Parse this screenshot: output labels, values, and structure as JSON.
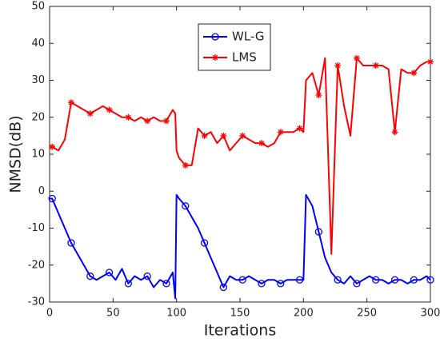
{
  "chart_data": {
    "type": "line",
    "xlabel": "Iterations",
    "ylabel": "NMSD(dB)",
    "xlim": [
      0,
      300
    ],
    "xticks": [
      0,
      50,
      100,
      150,
      200,
      250,
      300
    ],
    "ylim": [
      -30,
      50
    ],
    "yticks": [
      -30,
      -20,
      -10,
      0,
      10,
      20,
      30,
      40,
      50
    ],
    "grid": false,
    "legend": "top",
    "x": [
      0,
      2,
      7,
      12,
      17,
      22,
      27,
      32,
      37,
      42,
      47,
      52,
      57,
      62,
      67,
      72,
      77,
      82,
      87,
      92,
      97,
      99,
      100,
      102,
      107,
      112,
      117,
      122,
      127,
      132,
      137,
      142,
      147,
      152,
      157,
      162,
      167,
      172,
      177,
      182,
      187,
      192,
      197,
      200,
      202,
      207,
      212,
      217,
      222,
      227,
      232,
      237,
      242,
      247,
      252,
      257,
      262,
      267,
      272,
      277,
      282,
      287,
      292,
      297,
      300
    ],
    "series": [
      {
        "name": "WL-G",
        "color": "#0000ff",
        "marker": "o",
        "values": [
          -2,
          -2,
          -6,
          -10,
          -14,
          -17,
          -20,
          -23,
          -24,
          -23,
          -22,
          -24,
          -21,
          -25,
          -23,
          -24,
          -23,
          -26,
          -24,
          -25,
          -22,
          -29,
          -1,
          -2,
          -4,
          -7,
          -10,
          -14,
          -18,
          -22,
          -26,
          -23,
          -24,
          -24,
          -23,
          -24,
          -25,
          -24,
          -24,
          -25,
          -24,
          -24,
          -24,
          -24,
          -1,
          -4,
          -11,
          -18,
          -22,
          -24,
          -25,
          -23,
          -25,
          -24,
          -23,
          -24,
          -24,
          -25,
          -24,
          -24,
          -25,
          -24,
          -24,
          -23,
          -24
        ]
      },
      {
        "name": "LMS",
        "color": "#ff0000",
        "marker": "*",
        "values": [
          12,
          12,
          11,
          14,
          24,
          23,
          22,
          21,
          22,
          23,
          22,
          21,
          20,
          20,
          19,
          20,
          19,
          20,
          19,
          19,
          22,
          21,
          11,
          9,
          7,
          7,
          17,
          15,
          16,
          13,
          15,
          11,
          13,
          15,
          14,
          13,
          13,
          12,
          13,
          16,
          16,
          16,
          17,
          16,
          30,
          32,
          26,
          36,
          -17,
          34,
          23,
          15,
          36,
          34,
          34,
          34,
          34,
          33,
          16,
          33,
          32,
          32,
          34,
          35,
          35
        ]
      }
    ]
  }
}
